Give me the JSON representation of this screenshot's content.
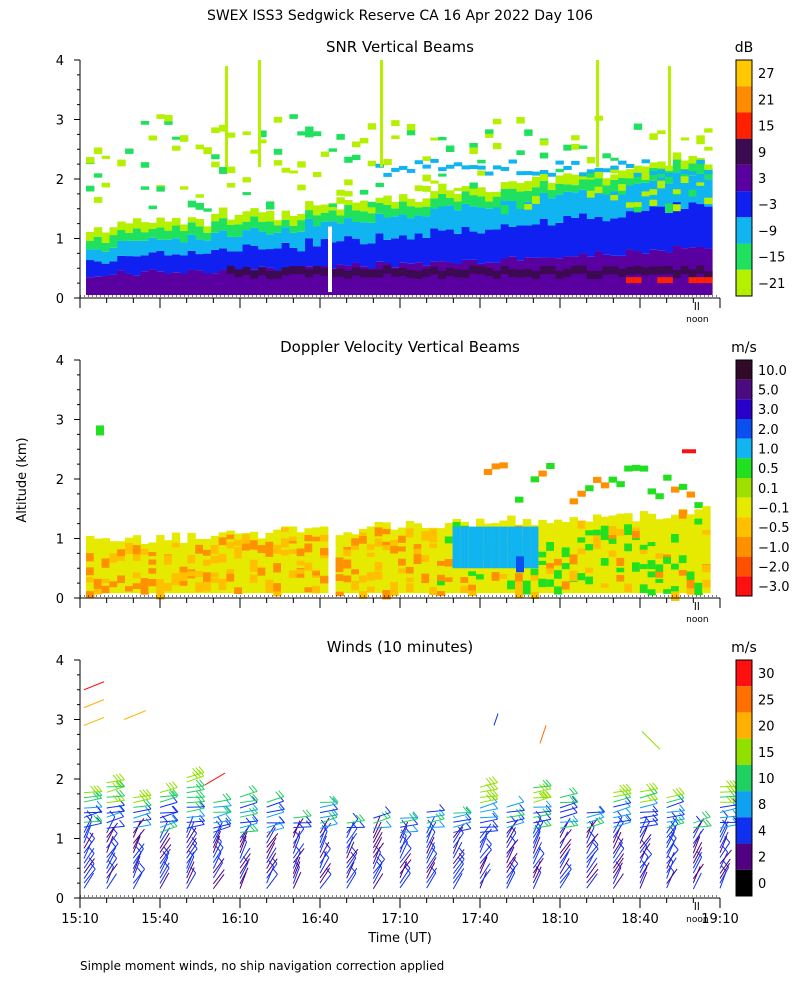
{
  "title": "SWEX ISS3 Sedgwick Reserve CA  16 Apr 2022 Day 106",
  "ylabel": "Altitude (km)",
  "xlabel": "Time (UT)",
  "noon_label": "noon",
  "footnote": "Simple moment winds, no ship navigation correction applied",
  "chart_data": [
    {
      "type": "heatmap",
      "title": "SNR Vertical Beams",
      "units": "dB",
      "y_ticks": [
        "0",
        "1",
        "2",
        "3",
        "4"
      ],
      "ylim": [
        0,
        4
      ],
      "xlim_minutes": [
        0,
        240
      ],
      "colorbar_labels": [
        "27",
        "21",
        "15",
        "9",
        "3",
        "−3",
        "−9",
        "−15",
        "−21"
      ],
      "colorbar_colors": [
        "#ffc800",
        "#ff8c00",
        "#ff2000",
        "#3c0a50",
        "#5a00a0",
        "#1020f0",
        "#10b4f0",
        "#20e060",
        "#b4f000"
      ]
    },
    {
      "type": "heatmap",
      "title": "Doppler Velocity Vertical Beams",
      "units": "m/s",
      "y_ticks": [
        "0",
        "1",
        "2",
        "3",
        "4"
      ],
      "ylim": [
        0,
        4
      ],
      "xlim_minutes": [
        0,
        240
      ],
      "colorbar_labels": [
        "10.0",
        "5.0",
        "3.0",
        "2.0",
        "1.0",
        "0.5",
        "0.1",
        "−0.1",
        "−0.5",
        "−1.0",
        "−2.0",
        "−3.0"
      ],
      "colorbar_colors": [
        "#300a28",
        "#4a0a80",
        "#2a00c8",
        "#0a50f0",
        "#10b4f0",
        "#20e020",
        "#a0e000",
        "#e6ea00",
        "#ffc000",
        "#ff9000",
        "#ff5000",
        "#ff1010"
      ]
    },
    {
      "type": "wind_barbs",
      "title": "Winds (10 minutes)",
      "units": "m/s",
      "y_ticks": [
        "0",
        "1",
        "2",
        "3",
        "4"
      ],
      "ylim": [
        0,
        4
      ],
      "x_ticks": [
        "15:10",
        "15:40",
        "16:10",
        "16:40",
        "17:10",
        "17:40",
        "18:10",
        "18:40",
        "19:10"
      ],
      "xlim_minutes": [
        0,
        240
      ],
      "colorbar_labels": [
        "30",
        "25",
        "20",
        "15",
        "10",
        "8",
        "4",
        "2",
        "0"
      ],
      "colorbar_colors": [
        "#ff1010",
        "#ff7000",
        "#ffb000",
        "#90e000",
        "#20d060",
        "#10a0f0",
        "#1030f0",
        "#500080",
        "#000000"
      ],
      "columns_minutes": [
        0,
        10,
        20,
        30,
        40,
        50,
        60,
        70,
        80,
        90,
        100,
        110,
        120,
        130,
        140,
        150,
        160,
        170,
        180,
        190,
        200,
        210,
        220,
        230,
        240
      ]
    }
  ]
}
